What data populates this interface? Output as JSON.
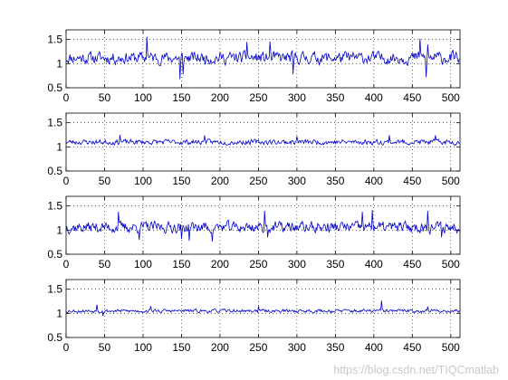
{
  "watermark": "https://blog.csdn.net/TIQCmatlab",
  "chart_data": [
    {
      "type": "line",
      "xlim": [
        0,
        512
      ],
      "ylim": [
        0.5,
        1.7
      ],
      "xticks": [
        0,
        50,
        100,
        150,
        200,
        250,
        300,
        350,
        400,
        450,
        500
      ],
      "yticks": [
        0.5,
        1,
        1.5
      ],
      "grid": true,
      "color": "#0000c8",
      "series": [
        {
          "n": 512,
          "base": 1.12,
          "amp": 0.14,
          "seed": 11,
          "spikes": [
            [
              105,
              1.56
            ],
            [
              148,
              0.68
            ],
            [
              152,
              0.78
            ],
            [
              235,
              1.45
            ],
            [
              265,
              1.46
            ],
            [
              295,
              0.78
            ],
            [
              460,
              1.52
            ],
            [
              468,
              0.72
            ],
            [
              470,
              1.4
            ]
          ]
        }
      ]
    },
    {
      "type": "line",
      "xlim": [
        0,
        512
      ],
      "ylim": [
        0.5,
        1.7
      ],
      "xticks": [
        0,
        50,
        100,
        150,
        200,
        250,
        300,
        350,
        400,
        450,
        500
      ],
      "yticks": [
        0.5,
        1,
        1.5
      ],
      "grid": true,
      "color": "#0000c8",
      "series": [
        {
          "n": 512,
          "base": 1.1,
          "amp": 0.06,
          "seed": 23,
          "spikes": [
            [
              70,
              1.25
            ],
            [
              180,
              1.24
            ],
            [
              300,
              1.22
            ],
            [
              420,
              1.24
            ],
            [
              480,
              1.24
            ]
          ]
        }
      ]
    },
    {
      "type": "line",
      "xlim": [
        0,
        512
      ],
      "ylim": [
        0.5,
        1.7
      ],
      "xticks": [
        0,
        50,
        100,
        150,
        200,
        250,
        300,
        350,
        400,
        450,
        500
      ],
      "yticks": [
        0.5,
        1,
        1.5
      ],
      "grid": true,
      "color": "#0000c8",
      "series": [
        {
          "n": 512,
          "base": 1.06,
          "amp": 0.13,
          "seed": 37,
          "spikes": [
            [
              68,
              1.38
            ],
            [
              95,
              0.8
            ],
            [
              150,
              0.82
            ],
            [
              160,
              0.78
            ],
            [
              190,
              0.76
            ],
            [
              258,
              1.4
            ],
            [
              262,
              0.85
            ],
            [
              385,
              1.38
            ],
            [
              398,
              1.42
            ],
            [
              470,
              1.4
            ],
            [
              488,
              0.85
            ]
          ]
        }
      ]
    },
    {
      "type": "line",
      "xlim": [
        0,
        512
      ],
      "ylim": [
        0.5,
        1.7
      ],
      "xticks": [
        0,
        50,
        100,
        150,
        200,
        250,
        300,
        350,
        400,
        450,
        500
      ],
      "yticks": [
        0.5,
        1,
        1.5
      ],
      "grid": true,
      "color": "#0000c8",
      "series": [
        {
          "n": 512,
          "base": 1.05,
          "amp": 0.04,
          "seed": 53,
          "spikes": [
            [
              40,
              1.18
            ],
            [
              48,
              0.95
            ],
            [
              110,
              1.15
            ],
            [
              250,
              1.15
            ],
            [
              410,
              1.26
            ],
            [
              470,
              1.14
            ]
          ]
        }
      ]
    }
  ]
}
